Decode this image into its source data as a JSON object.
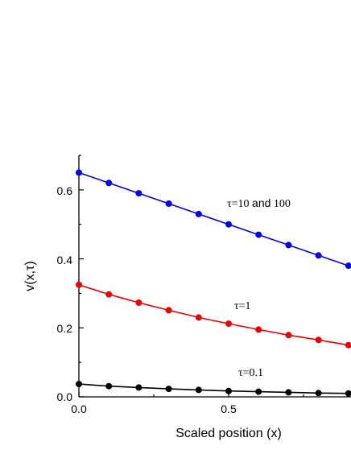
{
  "chart_data": {
    "type": "line",
    "xlabel": "Scaled position (x)",
    "ylabel": "v(x,τ)",
    "xlim": [
      0.0,
      1.0
    ],
    "ylim": [
      0.0,
      0.7
    ],
    "x_ticks": [
      "0.0",
      "0.5"
    ],
    "y_ticks": [
      "0.0",
      "0.2",
      "0.4",
      "0.6"
    ],
    "grid": false,
    "series": [
      {
        "color": "#0000ee",
        "x": [
          0.0,
          0.1,
          0.2,
          0.3,
          0.4,
          0.5,
          0.6,
          0.7,
          0.8,
          0.9
        ],
        "values": [
          0.65,
          0.62,
          0.59,
          0.56,
          0.53,
          0.5,
          0.47,
          0.44,
          0.41,
          0.38
        ]
      },
      {
        "color": "#ee0000",
        "x": [
          0.0,
          0.1,
          0.2,
          0.3,
          0.4,
          0.5,
          0.6,
          0.7,
          0.8,
          0.9
        ],
        "values": [
          0.325,
          0.297,
          0.273,
          0.251,
          0.23,
          0.212,
          0.195,
          0.179,
          0.165,
          0.15
        ]
      },
      {
        "color": "#000000",
        "x": [
          0.0,
          0.1,
          0.2,
          0.3,
          0.4,
          0.5,
          0.6,
          0.7,
          0.8,
          0.9
        ],
        "values": [
          0.037,
          0.031,
          0.027,
          0.023,
          0.02,
          0.017,
          0.015,
          0.013,
          0.011,
          0.01
        ]
      }
    ],
    "annotations": [
      {
        "text_tau": "τ=10",
        "text_and": "and",
        "text_num": "100",
        "x": 0.62,
        "y": 0.57
      },
      {
        "text_tau": "τ=1",
        "x": 0.62,
        "y": 0.265
      },
      {
        "text_tau": "τ=0.1",
        "x": 0.62,
        "y": 0.135
      }
    ]
  }
}
